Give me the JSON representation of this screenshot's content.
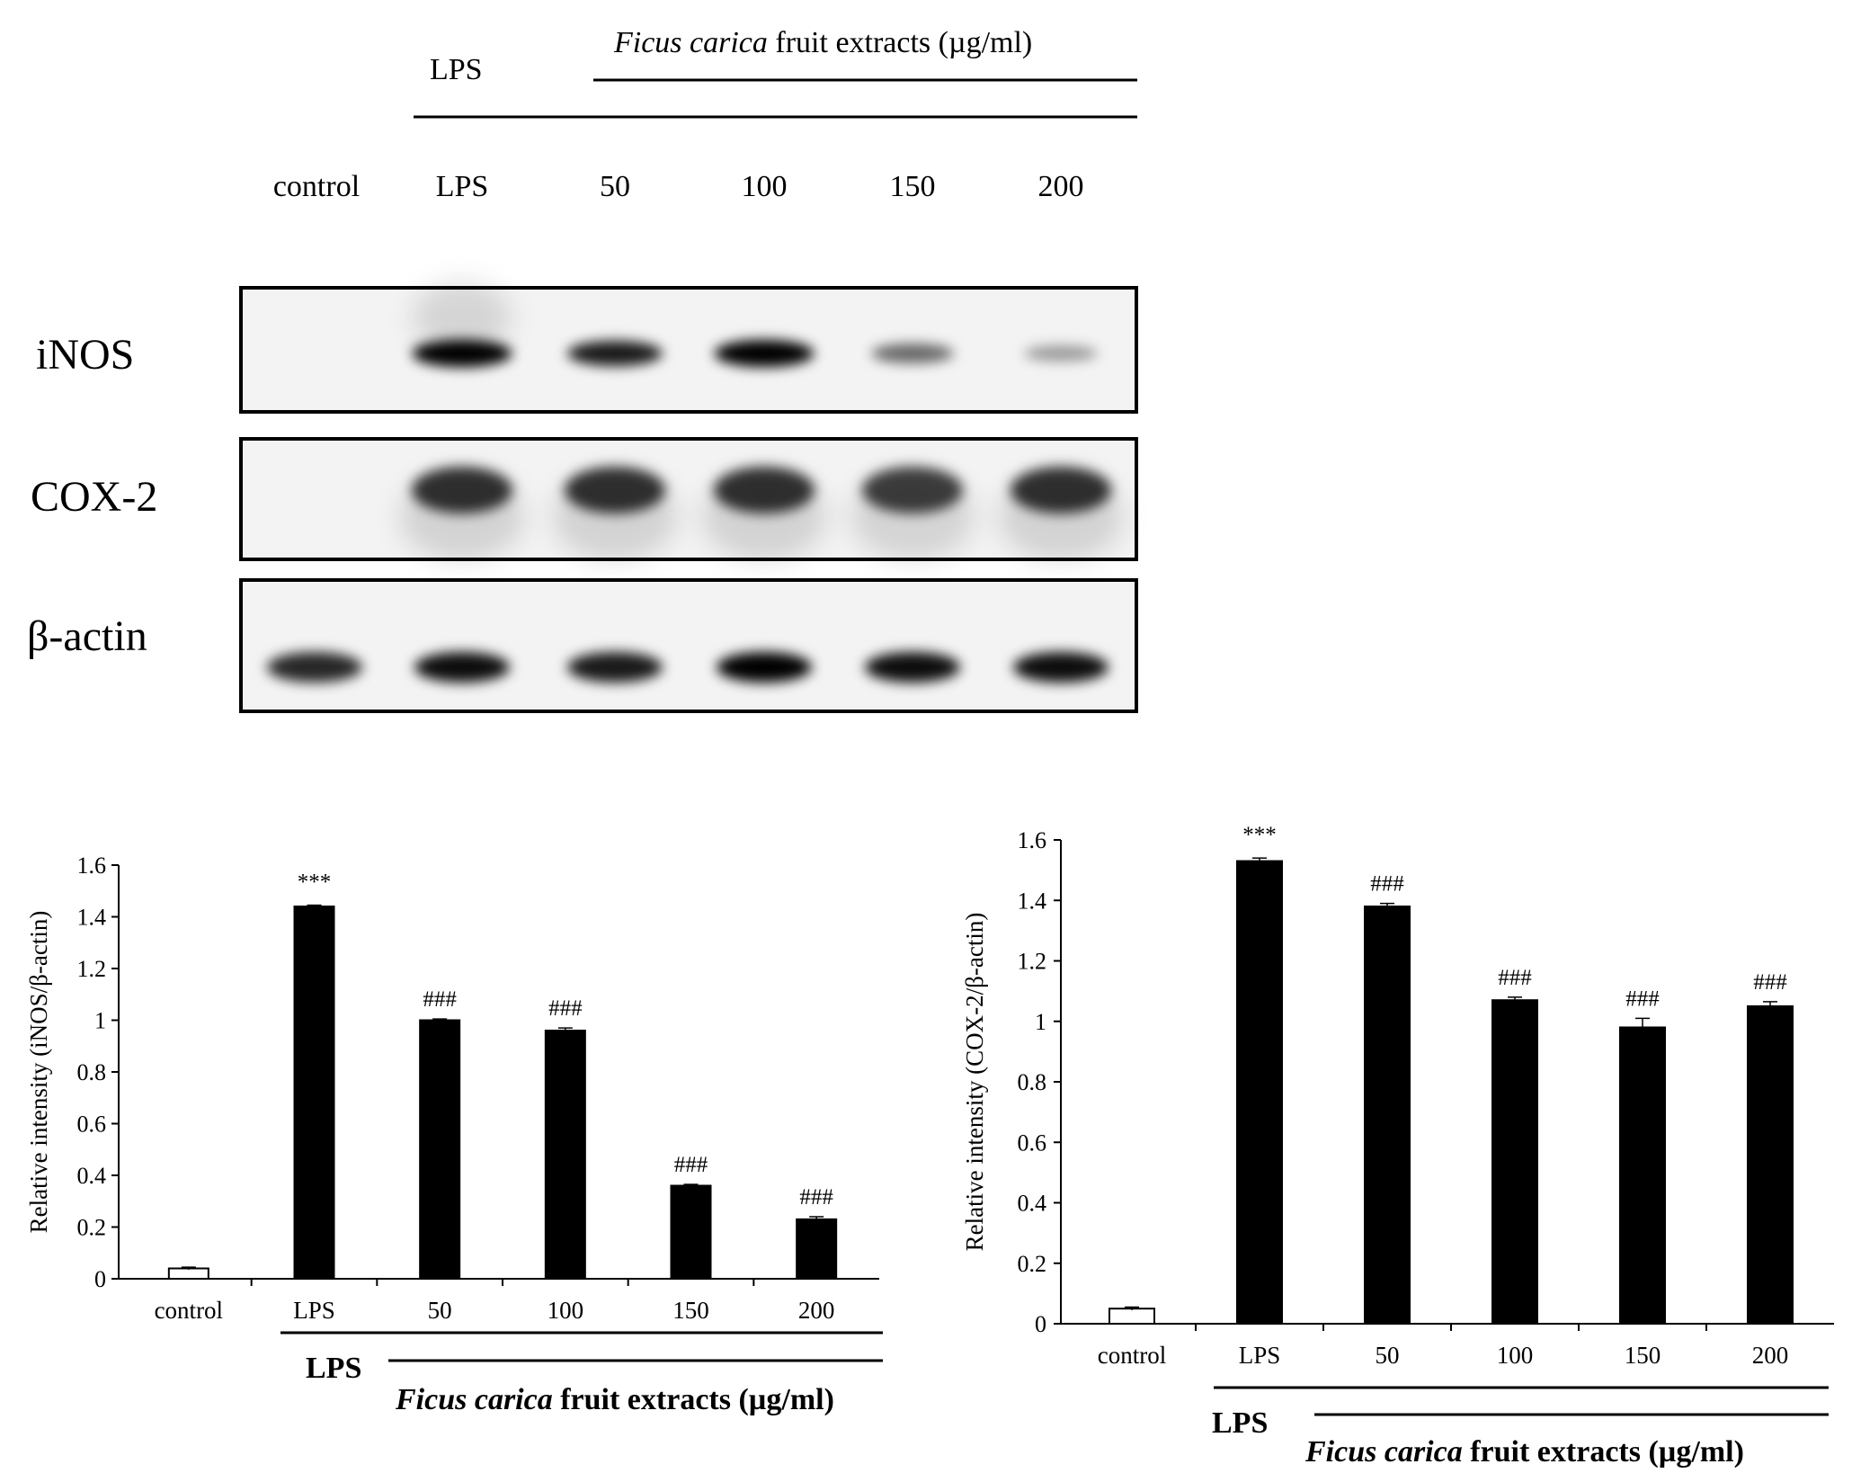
{
  "blot": {
    "header_lps": "LPS",
    "header_extract_italic": "Ficus carica",
    "header_extract_rest": "fruit extracts (µg/ml)",
    "lanes": [
      "control",
      "LPS",
      "50",
      "100",
      "150",
      "200"
    ],
    "proteins": [
      "iNOS",
      "COX-2",
      "β-actin"
    ],
    "band_intensity": {
      "iNOS": [
        0.0,
        0.95,
        0.85,
        0.95,
        0.55,
        0.35
      ],
      "COX-2": [
        0.0,
        0.75,
        0.75,
        0.75,
        0.7,
        0.75
      ],
      "β-actin": [
        0.8,
        0.9,
        0.85,
        0.95,
        0.9,
        0.9
      ]
    }
  },
  "chart_data": [
    {
      "type": "bar",
      "categories": [
        "control",
        "LPS",
        "50",
        "100",
        "150",
        "200"
      ],
      "values": [
        0.04,
        1.44,
        1.0,
        0.96,
        0.36,
        0.23
      ],
      "errors": [
        0.005,
        0.005,
        0.005,
        0.01,
        0.005,
        0.01
      ],
      "annotations": [
        "",
        "***",
        "###",
        "###",
        "###",
        "###"
      ],
      "bar_fill": [
        "#ffffff",
        "#000000",
        "#000000",
        "#000000",
        "#000000",
        "#000000"
      ],
      "ylabel": "Relative intensity (iNOS/β-actin)",
      "ylim": [
        0,
        1.6
      ],
      "yticks": [
        "0",
        "0.2",
        "0.4",
        "0.6",
        "0.8",
        "1",
        "1.2",
        "1.4",
        "1.6"
      ],
      "treatment_lps": "LPS",
      "treatment_extract_italic": "Ficus carica",
      "treatment_extract_rest": "fruit extracts (µg/ml)",
      "grid": false
    },
    {
      "type": "bar",
      "categories": [
        "control",
        "LPS",
        "50",
        "100",
        "150",
        "200"
      ],
      "values": [
        0.05,
        1.53,
        1.38,
        1.07,
        0.98,
        1.05
      ],
      "errors": [
        0.005,
        0.01,
        0.01,
        0.01,
        0.03,
        0.015
      ],
      "annotations": [
        "",
        "***",
        "###",
        "###",
        "###",
        "###"
      ],
      "bar_fill": [
        "#ffffff",
        "#000000",
        "#000000",
        "#000000",
        "#000000",
        "#000000"
      ],
      "ylabel": "Relative intensity (COX-2/β-actin)",
      "ylim": [
        0,
        1.6
      ],
      "yticks": [
        "0",
        "0.2",
        "0.4",
        "0.6",
        "0.8",
        "1",
        "1.2",
        "1.4",
        "1.6"
      ],
      "treatment_lps": "LPS",
      "treatment_extract_italic": "Ficus carica",
      "treatment_extract_rest": "fruit extracts (µg/ml)",
      "grid": false
    }
  ]
}
